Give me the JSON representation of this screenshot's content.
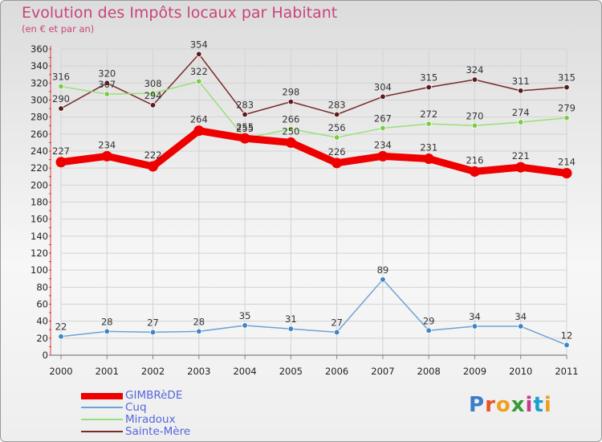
{
  "title": "Evolution des Impôts locaux par Habitant",
  "subtitle": "(en € et par an)",
  "logo": "Proxiti",
  "logo_colors": [
    "#3a7dc8",
    "#e8552a",
    "#f0a020",
    "#3a9a3a",
    "#c83a8a",
    "#1aa0d0",
    "#e8a020"
  ],
  "chart_data": {
    "type": "line",
    "title": "Evolution des Impôts locaux par Habitant",
    "subtitle": "(en € et par an)",
    "x": [
      "2000",
      "2001",
      "2002",
      "2003",
      "2004",
      "2005",
      "2006",
      "2007",
      "2008",
      "2009",
      "2010",
      "2011"
    ],
    "ylim": [
      0,
      360
    ],
    "yticks": [
      0,
      20,
      40,
      60,
      80,
      100,
      120,
      140,
      160,
      180,
      200,
      220,
      240,
      260,
      280,
      300,
      320,
      340,
      360
    ],
    "grid": true,
    "legend_position": "bottom-left",
    "series": [
      {
        "name": "GIMBRèDE",
        "color": "#ee0000",
        "values": [
          227,
          234,
          222,
          264,
          255,
          250,
          226,
          234,
          231,
          216,
          221,
          214
        ],
        "labels": [
          "227",
          "234",
          "222",
          "264",
          "255",
          "250",
          "226",
          "234",
          "231",
          "216",
          "221",
          "214"
        ]
      },
      {
        "name": "Cuq",
        "color": "#6ea3d6",
        "point_color": "#3d85c8",
        "values": [
          22,
          28,
          27,
          28,
          35,
          31,
          27,
          89,
          29,
          34,
          34,
          12
        ],
        "labels": [
          "22",
          "28",
          "27",
          "28",
          "35",
          "31",
          "27",
          "89",
          "29",
          "34",
          "34",
          "12"
        ]
      },
      {
        "name": "Miradoux",
        "color": "#99e07a",
        "point_color": "#7acc44",
        "values": [
          316,
          307,
          308,
          322,
          255,
          266,
          256,
          267,
          272,
          270,
          274,
          279
        ],
        "labels": [
          "316",
          "307",
          "308",
          "322",
          "255",
          "266",
          "256",
          "267",
          "272",
          "270",
          "274",
          "279"
        ]
      },
      {
        "name": "Sainte-Mère",
        "color": "#7a2a2a",
        "point_color": "#5a1a1a",
        "values": [
          290,
          320,
          294,
          354,
          283,
          298,
          283,
          304,
          315,
          324,
          311,
          315
        ],
        "labels": [
          "290",
          "320",
          "294",
          "354",
          "283",
          "298",
          "283",
          "304",
          "315",
          "324",
          "311",
          "315"
        ]
      }
    ]
  }
}
